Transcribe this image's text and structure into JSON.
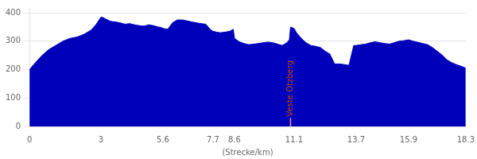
{
  "chart_data": {
    "type": "area",
    "x_label": "(Strecke/km)",
    "x": [
      0.0,
      0.2,
      0.5,
      0.8,
      1.1,
      1.4,
      1.7,
      2.0,
      2.3,
      2.6,
      2.8,
      3.0,
      3.1,
      3.2,
      3.4,
      3.6,
      3.8,
      4.0,
      4.2,
      4.4,
      4.6,
      4.8,
      5.0,
      5.2,
      5.4,
      5.55,
      5.6,
      5.8,
      6.0,
      6.2,
      6.4,
      6.6,
      6.8,
      7.0,
      7.2,
      7.4,
      7.6,
      7.7,
      7.85,
      8.0,
      8.2,
      8.4,
      8.55,
      8.6,
      8.8,
      9.0,
      9.2,
      9.4,
      9.6,
      9.8,
      10.0,
      10.2,
      10.4,
      10.6,
      10.8,
      10.9,
      10.95,
      11.1,
      11.2,
      11.4,
      11.6,
      11.8,
      12.0,
      12.2,
      12.4,
      12.6,
      12.8,
      13.0,
      13.2,
      13.4,
      13.6,
      13.7,
      13.9,
      14.1,
      14.3,
      14.5,
      14.7,
      14.9,
      15.1,
      15.3,
      15.5,
      15.7,
      15.9,
      16.1,
      16.3,
      16.5,
      16.7,
      16.9,
      17.1,
      17.3,
      17.5,
      17.7,
      17.9,
      18.1,
      18.3
    ],
    "values": [
      200,
      220,
      248,
      270,
      285,
      300,
      310,
      315,
      325,
      340,
      360,
      385,
      383,
      378,
      370,
      368,
      365,
      360,
      362,
      358,
      355,
      353,
      358,
      355,
      350,
      348,
      345,
      342,
      365,
      375,
      375,
      372,
      368,
      365,
      362,
      360,
      340,
      335,
      332,
      330,
      332,
      335,
      342,
      310,
      298,
      292,
      288,
      290,
      292,
      295,
      297,
      295,
      290,
      285,
      295,
      305,
      350,
      345,
      330,
      310,
      295,
      285,
      282,
      278,
      265,
      255,
      220,
      220,
      218,
      215,
      285,
      285,
      288,
      290,
      295,
      298,
      295,
      292,
      290,
      295,
      300,
      302,
      305,
      300,
      296,
      292,
      288,
      278,
      265,
      252,
      235,
      225,
      218,
      212,
      205
    ],
    "color": "#0000BB",
    "xlim": [
      0,
      18.3
    ],
    "xticks": [
      0,
      3,
      5.6,
      7.7,
      8.6,
      11.1,
      13.7,
      15.9,
      18.3
    ],
    "ylim": [
      0,
      420
    ],
    "yticks": [
      0,
      100,
      200,
      300,
      400
    ],
    "grid": "y",
    "annotations": [
      {
        "text": "Veste Otzberg",
        "x": 10.95,
        "y": 35,
        "color": "#CC4400",
        "line": {
          "x": [
            10.95,
            10.95
          ],
          "y": [
            0,
            30
          ],
          "color": "#FF9999"
        }
      }
    ]
  }
}
